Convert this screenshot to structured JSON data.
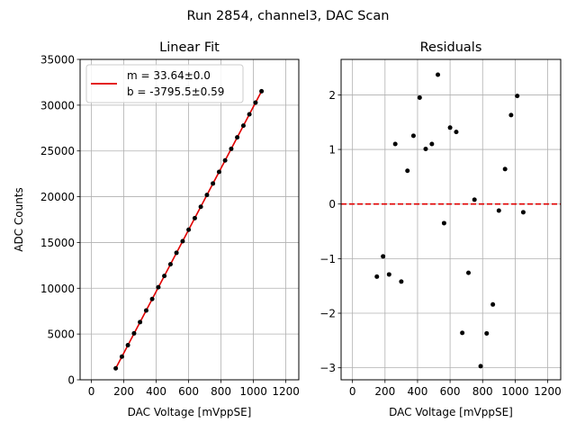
{
  "figure_title": "Run 2854, channel3, DAC Scan",
  "colors": {
    "fit": "#e00000",
    "points": "#000000",
    "grid": "#b0b0b0",
    "zero_line": "#e00000"
  },
  "chart_data": [
    {
      "type": "scatter",
      "title": "Linear Fit",
      "xlabel": "DAC Voltage [mVppSE]",
      "ylabel": "ADC Counts",
      "xlim": [
        -70,
        1280
      ],
      "ylim": [
        0,
        35000
      ],
      "xticks": [
        0,
        200,
        400,
        600,
        800,
        1000,
        1200
      ],
      "yticks": [
        0,
        5000,
        10000,
        15000,
        20000,
        25000,
        30000,
        35000
      ],
      "grid": true,
      "legend": {
        "placement": "top-left",
        "entries": [
          "m = 33.64±0.0",
          "b = -3795.5±0.59"
        ]
      },
      "fit": {
        "slope": 33.64,
        "intercept": -3795.5,
        "x_range": [
          150,
          1050
        ]
      },
      "series": [
        {
          "name": "data",
          "x": [
            150,
            188,
            225,
            263,
            300,
            338,
            375,
            413,
            450,
            488,
            525,
            563,
            600,
            638,
            675,
            713,
            750,
            788,
            825,
            863,
            900,
            938,
            975,
            1013,
            1050
          ],
          "y": [
            1250,
            2530,
            3780,
            5070,
            6300,
            7570,
            8820,
            10110,
            11340,
            12620,
            13870,
            15140,
            16390,
            17660,
            18900,
            20190,
            21440,
            22710,
            23960,
            25230,
            26480,
            27760,
            29000,
            30280,
            31520
          ]
        }
      ]
    },
    {
      "type": "scatter",
      "title": "Residuals",
      "xlabel": "DAC Voltage [mVppSE]",
      "ylabel": "",
      "xlim": [
        -70,
        1280
      ],
      "ylim": [
        -3.22,
        2.65
      ],
      "xticks": [
        0,
        200,
        400,
        600,
        800,
        1000,
        1200
      ],
      "yticks": [
        -3,
        -2,
        -1,
        0,
        1,
        2
      ],
      "grid": true,
      "zero_line": 0,
      "series": [
        {
          "name": "residuals",
          "x": [
            150,
            188,
            225,
            263,
            300,
            338,
            375,
            413,
            450,
            488,
            525,
            563,
            600,
            638,
            675,
            713,
            750,
            788,
            825,
            863,
            900,
            938,
            975,
            1013,
            1050
          ],
          "y": [
            -1.33,
            -0.96,
            -1.29,
            1.1,
            -1.42,
            0.61,
            1.25,
            1.95,
            1.01,
            1.1,
            2.37,
            -0.35,
            1.4,
            1.32,
            -2.36,
            -1.26,
            0.08,
            -2.97,
            -2.37,
            -1.84,
            -0.12,
            0.64,
            1.63,
            1.98,
            -0.15
          ]
        }
      ]
    }
  ]
}
